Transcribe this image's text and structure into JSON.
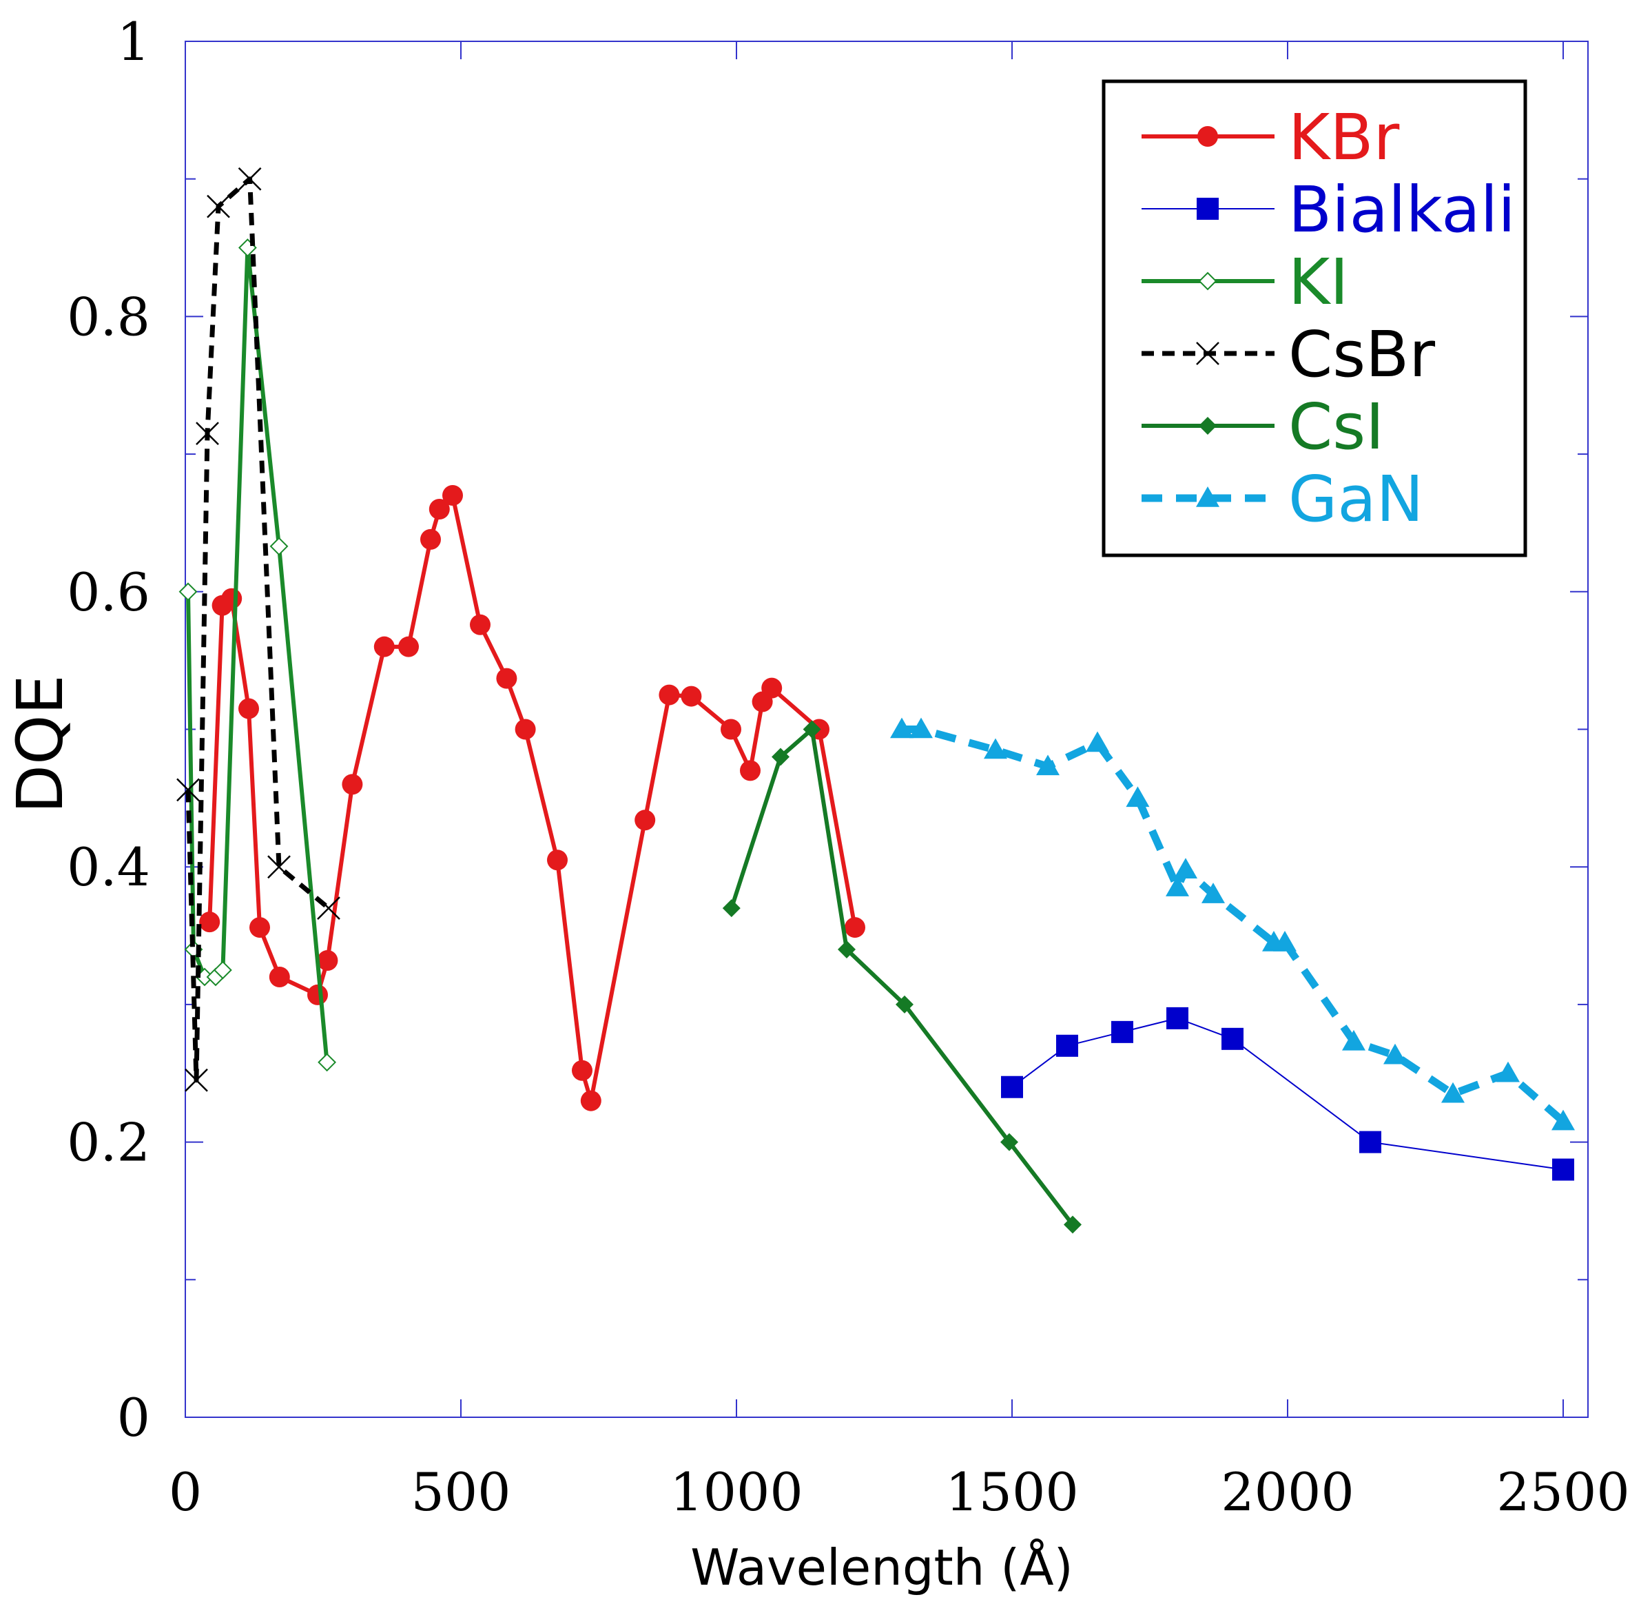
{
  "chart_data": {
    "type": "line",
    "xlabel": "Wavelength (Å)",
    "ylabel": "DQE",
    "xlim": [
      0,
      2500
    ],
    "ylim": [
      0,
      1
    ],
    "x_ticks": [
      "0",
      "500",
      "1000",
      "1500",
      "2000",
      "2500"
    ],
    "y_ticks": [
      "0",
      "0.2",
      "0.4",
      "0.6",
      "0.8",
      "1"
    ],
    "grid": false,
    "legend_position": "top-right",
    "frame_color": "#3333cc",
    "series": [
      {
        "name": "KBr",
        "color": "#e41a1c",
        "marker": "circle",
        "line": "solid",
        "points": [
          [
            44,
            0.36
          ],
          [
            67,
            0.59
          ],
          [
            84,
            0.595
          ],
          [
            115,
            0.515
          ],
          [
            135,
            0.356
          ],
          [
            171,
            0.32
          ],
          [
            240,
            0.307
          ],
          [
            258,
            0.332
          ],
          [
            303,
            0.46
          ],
          [
            361,
            0.56
          ],
          [
            405,
            0.56
          ],
          [
            445,
            0.638
          ],
          [
            461,
            0.66
          ],
          [
            485,
            0.67
          ],
          [
            535,
            0.576
          ],
          [
            583,
            0.537
          ],
          [
            617,
            0.5
          ],
          [
            675,
            0.405
          ],
          [
            720,
            0.252
          ],
          [
            736,
            0.23
          ],
          [
            834,
            0.434
          ],
          [
            878,
            0.525
          ],
          [
            918,
            0.524
          ],
          [
            990,
            0.5
          ],
          [
            1025,
            0.47
          ],
          [
            1047,
            0.52
          ],
          [
            1064,
            0.53
          ],
          [
            1150,
            0.5
          ],
          [
            1215,
            0.356
          ]
        ]
      },
      {
        "name": "Bialkali",
        "color": "#0000cc",
        "marker": "square",
        "line": "thin",
        "points": [
          [
            1500,
            0.24
          ],
          [
            1600,
            0.27
          ],
          [
            1700,
            0.28
          ],
          [
            1800,
            0.29
          ],
          [
            1900,
            0.275
          ],
          [
            2150,
            0.2
          ],
          [
            2500,
            0.18
          ]
        ]
      },
      {
        "name": "KI",
        "color": "#1a8a2a",
        "marker": "diamond-open",
        "line": "solid",
        "points": [
          [
            5,
            0.6
          ],
          [
            15,
            0.34
          ],
          [
            35,
            0.32
          ],
          [
            55,
            0.32
          ],
          [
            68,
            0.325
          ],
          [
            113,
            0.85
          ],
          [
            170,
            0.633
          ],
          [
            257,
            0.258
          ]
        ]
      },
      {
        "name": "CsBr",
        "color": "#000000",
        "marker": "x",
        "line": "dashed",
        "points": [
          [
            5,
            0.456
          ],
          [
            20,
            0.245
          ],
          [
            40,
            0.715
          ],
          [
            60,
            0.88
          ],
          [
            117,
            0.9
          ],
          [
            170,
            0.4
          ],
          [
            260,
            0.37
          ]
        ]
      },
      {
        "name": "CsI",
        "color": "#157a25",
        "marker": "diamond",
        "line": "solid",
        "points": [
          [
            991,
            0.37
          ],
          [
            1080,
            0.48
          ],
          [
            1137,
            0.5
          ],
          [
            1200,
            0.34
          ],
          [
            1305,
            0.3
          ],
          [
            1495,
            0.2
          ],
          [
            1610,
            0.14
          ]
        ]
      },
      {
        "name": "GaN",
        "color": "#12a5e0",
        "marker": "triangle",
        "line": "dashed",
        "points": [
          [
            1300,
            0.5
          ],
          [
            1335,
            0.5
          ],
          [
            1470,
            0.485
          ],
          [
            1565,
            0.473
          ],
          [
            1655,
            0.49
          ],
          [
            1728,
            0.45
          ],
          [
            1800,
            0.385
          ],
          [
            1815,
            0.398
          ],
          [
            1865,
            0.38
          ],
          [
            1975,
            0.345
          ],
          [
            1995,
            0.345
          ],
          [
            2120,
            0.273
          ],
          [
            2195,
            0.263
          ],
          [
            2300,
            0.235
          ],
          [
            2400,
            0.25
          ],
          [
            2500,
            0.215
          ]
        ]
      }
    ]
  }
}
